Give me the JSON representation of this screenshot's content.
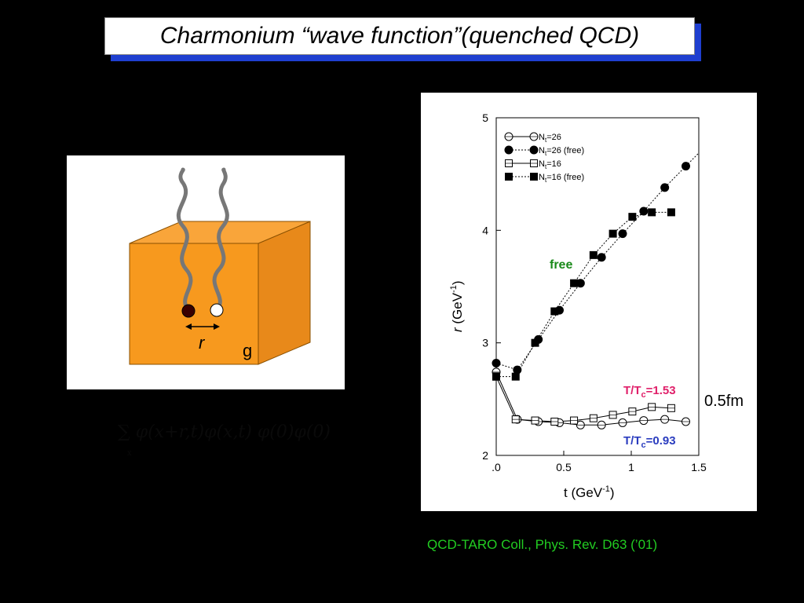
{
  "title": "Charmonium “wave function”(quenched QCD)",
  "diagram": {
    "separation_label": "r",
    "box_label": "g"
  },
  "formula": "∑ φ(x+r,t)φ(x,t) φ(0)φ(0)",
  "formula_sub": "x",
  "scale_annotation": "0.5fm",
  "citation": "QCD-TARO Coll., Phys. Rev. D63 (’01)",
  "colors": {
    "title_shadow": "#1f3fd0",
    "box_orange": "#f7991e",
    "free_label": "#1a8a1a",
    "t153_label": "#e0206a",
    "t093_label": "#2b3dbf",
    "citation": "#22cc22"
  },
  "chart_data": {
    "type": "scatter",
    "xlabel_main": "t (GeV",
    "xlabel_sup": "-1",
    "xlabel_end": ")",
    "ylabel_var": "r",
    "ylabel_main": " (GeV",
    "ylabel_sup": "-1",
    "ylabel_end": ")",
    "xlim": [
      0,
      1.5
    ],
    "ylim": [
      2,
      5
    ],
    "x_ticks": [
      {
        "value": 0,
        "label": ".0"
      },
      {
        "value": 0.5,
        "label": "0.5"
      },
      {
        "value": 1.0,
        "label": "1"
      },
      {
        "value": 1.5,
        "label": "1.5"
      }
    ],
    "y_ticks": [
      {
        "value": 2,
        "label": "2"
      },
      {
        "value": 3,
        "label": "3"
      },
      {
        "value": 4,
        "label": "4"
      },
      {
        "value": 5,
        "label": "5"
      }
    ],
    "annotations": {
      "free": "free",
      "t153_main": "T/T",
      "t153_sub": "c",
      "t153_end": "=1.53",
      "t093_main": "T/T",
      "t093_sub": "c",
      "t093_end": "=0.93"
    },
    "legend": {
      "placement": "top-left",
      "entries": [
        {
          "main": "N",
          "sub": "t",
          "rest": "=26",
          "marker": "circle-open",
          "line": "solid"
        },
        {
          "main": "N",
          "sub": "t",
          "rest": "=26 (free)",
          "marker": "circle-filled",
          "line": "dotted"
        },
        {
          "main": "N",
          "sub": "t",
          "rest": "=16",
          "marker": "square-open",
          "line": "solid"
        },
        {
          "main": "N",
          "sub": "t",
          "rest": "=16 (free)",
          "marker": "square-filled",
          "line": "dotted"
        }
      ]
    },
    "series": [
      {
        "marker": "circle-open",
        "line": "solid",
        "x": [
          0,
          0.156,
          0.312,
          0.468,
          0.624,
          0.78,
          0.936,
          1.092,
          1.248,
          1.404
        ],
        "y": [
          2.74,
          2.32,
          2.3,
          2.29,
          2.27,
          2.27,
          2.29,
          2.31,
          2.32,
          2.3
        ]
      },
      {
        "marker": "circle-filled",
        "line": "dotted",
        "x": [
          0,
          0.156,
          0.312,
          0.468,
          0.624,
          0.78,
          0.936,
          1.092,
          1.248,
          1.404
        ],
        "y": [
          2.82,
          2.76,
          3.03,
          3.29,
          3.53,
          3.76,
          3.97,
          4.17,
          4.38,
          4.57
        ]
      },
      {
        "marker": "square-open",
        "line": "solid",
        "x": [
          0,
          0.144,
          0.288,
          0.432,
          0.576,
          0.72,
          0.864,
          1.008,
          1.152,
          1.296
        ],
        "y": [
          2.7,
          2.32,
          2.31,
          2.3,
          2.31,
          2.33,
          2.36,
          2.39,
          2.43,
          2.42
        ]
      },
      {
        "marker": "square-filled",
        "line": "dotted",
        "x": [
          0,
          0.144,
          0.288,
          0.432,
          0.576,
          0.72,
          0.864,
          1.008,
          1.152,
          1.296
        ],
        "y": [
          2.7,
          2.7,
          3.0,
          3.28,
          3.53,
          3.78,
          3.97,
          4.12,
          4.16,
          4.16
        ]
      }
    ]
  }
}
